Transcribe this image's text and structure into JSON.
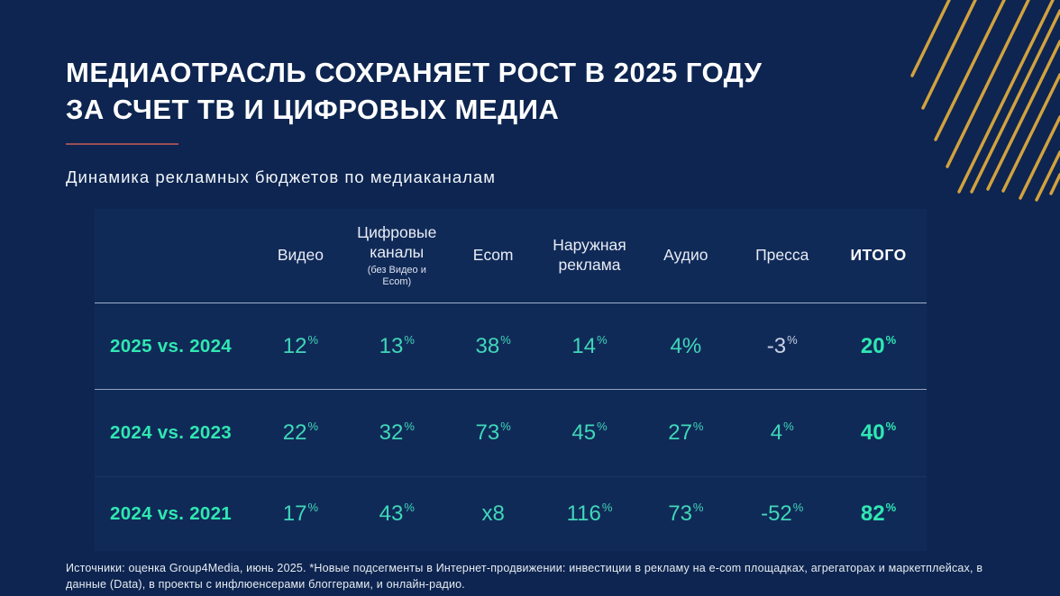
{
  "slide": {
    "title_line1": "МЕДИАОТРАСЛЬ СОХРАНЯЕТ РОСТ В 2025 ГОДУ",
    "title_line2": "ЗА СЧЕТ ТВ И ЦИФРОВЫХ МЕДИА",
    "subtitle": "Динамика рекламных бюджетов по медиаканалам",
    "footnote": "Источники: оценка Group4Media, июнь 2025. *Новые подсегменты в Интернет-продвижении: инвестиции в рекламу на e-com площадках, агрегаторах и маркетплейсах, в данные (Data), в проекты с инфлюенсерами блоггерами, и онлайн-радио."
  },
  "colors": {
    "background": "#0d2550",
    "table_panel": "#102a58",
    "teal_value": "#40d7b8",
    "teal_bright": "#2fe8b2",
    "muted_value": "#c9d1e4",
    "accent_line": "#9b4e55",
    "gold_stripes": "#d2a23e",
    "divider": "#9fb0c8",
    "text_white": "#ffffff"
  },
  "chart_data": {
    "type": "table",
    "title": "Динамика рекламных бюджетов по медиаканалам",
    "columns": [
      {
        "label": "Видео",
        "note": ""
      },
      {
        "label": "Цифровые каналы",
        "note": "(без Видео и Ecom)"
      },
      {
        "label": "Ecom",
        "note": ""
      },
      {
        "label": "Наружная реклама",
        "note": ""
      },
      {
        "label": "Аудио",
        "note": ""
      },
      {
        "label": "Пресса",
        "note": ""
      },
      {
        "label": "ИТОГО",
        "note": ""
      }
    ],
    "rows": [
      {
        "label": "2025 vs. 2024",
        "values": [
          "12%",
          "13%",
          "38%",
          "14%",
          "4%",
          "-3%",
          "20%"
        ]
      },
      {
        "label": "2024 vs. 2023",
        "values": [
          "22%",
          "32%",
          "73%",
          "45%",
          "27%",
          "4%",
          "40%"
        ]
      },
      {
        "label": "2024 vs. 2021",
        "values": [
          "17%",
          "43%",
          "x8",
          "116%",
          "73%",
          "-52%",
          "82%"
        ]
      }
    ],
    "cell_styles": {
      "muted_cells": [
        [
          0,
          5
        ]
      ],
      "inline_percent_cells": [
        [
          0,
          4
        ]
      ]
    }
  }
}
